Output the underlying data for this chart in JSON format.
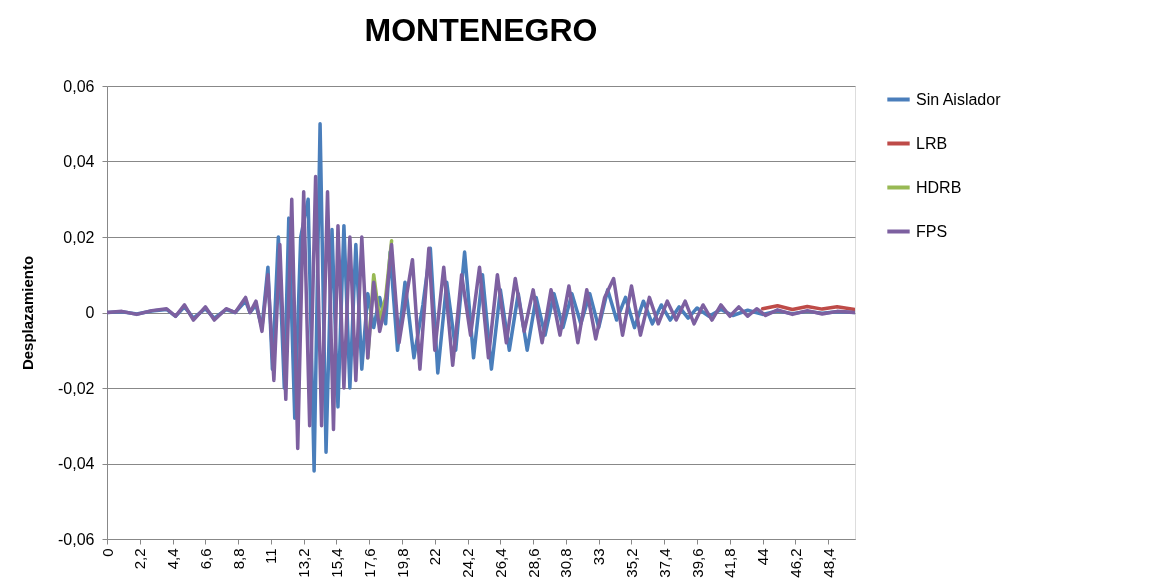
{
  "chart_data": {
    "type": "line",
    "title": "MONTENEGRO",
    "ylabel": "Desplazamiento",
    "xlim": [
      0,
      50.2
    ],
    "xticks": [
      0,
      {
        "value": 2.2,
        "label": "2,2"
      },
      {
        "value": 4.4,
        "label": "4,4"
      },
      {
        "value": 6.6,
        "label": "6,6"
      },
      {
        "value": 8.8,
        "label": "8,8"
      },
      11,
      {
        "value": 13.2,
        "label": "13,2"
      },
      {
        "value": 15.4,
        "label": "15,4"
      },
      {
        "value": 17.6,
        "label": "17,6"
      },
      {
        "value": 19.8,
        "label": "19,8"
      },
      22,
      {
        "value": 24.2,
        "label": "24,2"
      },
      {
        "value": 26.4,
        "label": "26,4"
      },
      {
        "value": 28.6,
        "label": "28,6"
      },
      {
        "value": 30.8,
        "label": "30,8"
      },
      33,
      {
        "value": 35.2,
        "label": "35,2"
      },
      {
        "value": 37.4,
        "label": "37,4"
      },
      {
        "value": 39.6,
        "label": "39,6"
      },
      {
        "value": 41.8,
        "label": "41,8"
      },
      44,
      {
        "value": 46.2,
        "label": "46,2"
      },
      {
        "value": 48.4,
        "label": "48,4"
      }
    ],
    "ylim": [
      -0.06,
      0.06
    ],
    "yticks": [
      {
        "value": -0.06,
        "label": "-0,06"
      },
      {
        "value": -0.04,
        "label": "-0,04"
      },
      {
        "value": -0.02,
        "label": "-0,02"
      },
      0,
      {
        "value": 0.02,
        "label": "0,02"
      },
      {
        "value": 0.04,
        "label": "0,04"
      },
      {
        "value": 0.06,
        "label": "0,06"
      }
    ],
    "grid": "y",
    "legend": "right",
    "marker": "none",
    "line_style": "solid",
    "series": [
      {
        "name": "Sin Aislador",
        "color": "#4a7ebb",
        "x": [
          0,
          1,
          2,
          3,
          4,
          4.6,
          5.2,
          5.8,
          6.6,
          7.2,
          8,
          8.6,
          9.3,
          9.6,
          10,
          10.4,
          10.8,
          11.1,
          11.5,
          11.9,
          12.2,
          12.6,
          13.0,
          13.5,
          13.9,
          14.3,
          14.7,
          15.1,
          15.5,
          15.9,
          16.3,
          16.7,
          17.1,
          17.5,
          17.9,
          18.3,
          18.7,
          19.0,
          19.5,
          20.0,
          20.6,
          21.2,
          21.7,
          22.2,
          22.8,
          23.4,
          24.0,
          24.6,
          25.2,
          25.8,
          26.4,
          27.0,
          27.6,
          28.2,
          28.8,
          29.4,
          30.0,
          30.6,
          31.2,
          31.8,
          32.4,
          33.0,
          33.6,
          34.2,
          34.8,
          35.4,
          36.0,
          36.6,
          37.2,
          37.8,
          38.4,
          39.0,
          39.6,
          40.4,
          41.2,
          42,
          43,
          44,
          45,
          46,
          47,
          48,
          49,
          50.2
        ],
        "values": [
          0,
          0.0002,
          -0.0004,
          0.0004,
          0.0008,
          -0.001,
          0.0015,
          -0.0015,
          0.001,
          -0.0015,
          0.0008,
          0,
          0.003,
          0,
          0.002,
          -0.004,
          0.012,
          -0.015,
          0.02,
          -0.02,
          0.025,
          -0.028,
          0.02,
          0.03,
          -0.042,
          0.05,
          -0.037,
          0.022,
          -0.025,
          0.023,
          -0.02,
          0.018,
          -0.015,
          0.005,
          -0.004,
          0.004,
          -0.003,
          0.016,
          -0.01,
          0.008,
          -0.012,
          0.002,
          0.017,
          -0.016,
          0.008,
          -0.01,
          0.016,
          -0.012,
          0.01,
          -0.015,
          0.006,
          -0.01,
          0.005,
          -0.01,
          0.004,
          -0.006,
          0.005,
          -0.004,
          0.005,
          -0.003,
          0.005,
          -0.004,
          0.006,
          -0.002,
          0.004,
          -0.004,
          0.003,
          -0.003,
          0.002,
          -0.002,
          0.0015,
          -0.0015,
          0.0012,
          -0.001,
          0.0008,
          -0.0008,
          0.0006,
          -0.0005,
          0.0004,
          -0.0003,
          0.0003,
          -0.0002,
          0.0002,
          0
        ]
      },
      {
        "name": "LRB",
        "color": "#be4b48",
        "x": [
          44,
          45,
          46,
          47,
          48,
          49,
          50.2
        ],
        "values": [
          0.001,
          0.0018,
          0.0008,
          0.0016,
          0.0009,
          0.0015,
          0.0008
        ]
      },
      {
        "name": "HDRB",
        "color": "#98b954",
        "x": [
          17.5,
          17.9,
          18.3,
          18.7,
          19.1
        ],
        "values": [
          -0.012,
          0.01,
          -0.002,
          0.004,
          0.019
        ]
      },
      {
        "name": "FPS",
        "color": "#7d60a0",
        "x": [
          0,
          1,
          2,
          3,
          4,
          4.6,
          5.2,
          5.8,
          6.6,
          7.2,
          8,
          8.6,
          9.3,
          9.6,
          10,
          10.4,
          10.8,
          11.2,
          11.6,
          12,
          12.4,
          12.8,
          13.2,
          13.6,
          14.0,
          14.4,
          14.8,
          15.2,
          15.5,
          15.9,
          16.3,
          16.7,
          17.1,
          17.5,
          17.9,
          18.3,
          18.7,
          19.1,
          19.6,
          20.0,
          20.5,
          21.0,
          21.6,
          22.0,
          22.6,
          23.2,
          23.8,
          24.4,
          25.0,
          25.6,
          26.2,
          26.8,
          27.4,
          28.0,
          28.6,
          29.2,
          29.8,
          30.4,
          31.0,
          31.6,
          32.2,
          32.8,
          33.4,
          34.0,
          34.6,
          35.2,
          35.8,
          36.4,
          37.0,
          37.6,
          38.2,
          38.8,
          39.4,
          40.0,
          40.6,
          41.2,
          41.8,
          42.4,
          43.0,
          43.6,
          44.2,
          45,
          46,
          47,
          48,
          49,
          50.2
        ],
        "values": [
          0,
          0.0003,
          -0.0005,
          0.0005,
          0.001,
          -0.001,
          0.002,
          -0.002,
          0.0015,
          -0.002,
          0.001,
          0,
          0.004,
          0,
          0.003,
          -0.005,
          0.01,
          -0.018,
          0.018,
          -0.023,
          0.03,
          -0.036,
          0.032,
          -0.03,
          0.036,
          -0.03,
          0.032,
          -0.031,
          0.023,
          -0.02,
          0.02,
          -0.018,
          0.02,
          -0.012,
          0.008,
          -0.005,
          0.002,
          0.018,
          -0.008,
          0.002,
          0.014,
          -0.015,
          0.017,
          -0.01,
          0.012,
          -0.014,
          0.01,
          -0.006,
          0.012,
          -0.012,
          0.01,
          -0.008,
          0.009,
          -0.005,
          0.006,
          -0.008,
          0.006,
          -0.006,
          0.007,
          -0.008,
          0.006,
          -0.007,
          0.004,
          0.009,
          -0.006,
          0.007,
          -0.006,
          0.004,
          -0.003,
          0.003,
          -0.002,
          0.003,
          -0.003,
          0.002,
          -0.002,
          0.002,
          -0.001,
          0.0015,
          -0.001,
          0.001,
          -0.0008,
          0.0007,
          -0.0005,
          0.0005,
          -0.0004,
          0.0003,
          0
        ]
      }
    ]
  }
}
